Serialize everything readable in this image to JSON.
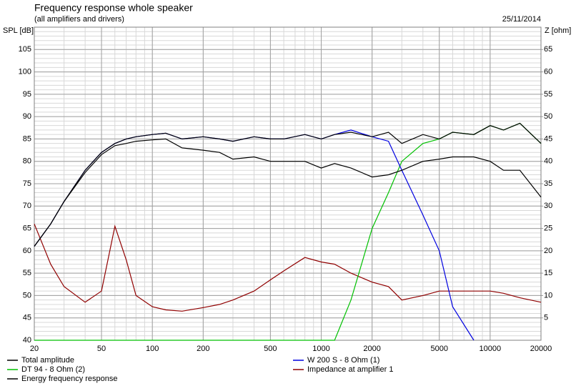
{
  "chart_data": {
    "type": "line",
    "title": "Frequency response whole speaker",
    "subtitle": "(all amplifiers and drivers)",
    "date": "25/11/2014",
    "ylabel": "SPL [dB]",
    "y2label": "Z [ohm]",
    "xscale": "log",
    "minor_grid": true,
    "x": [
      20,
      25,
      30,
      40,
      50,
      60,
      70,
      80,
      100,
      120,
      150,
      200,
      250,
      300,
      400,
      500,
      600,
      800,
      1000,
      1200,
      1500,
      2000,
      2500,
      3000,
      4000,
      5000,
      6000,
      8000,
      10000,
      12000,
      15000,
      20000
    ],
    "xlim": [
      20,
      20000
    ],
    "xticks": [
      20,
      50,
      100,
      200,
      500,
      1000,
      2000,
      5000,
      10000,
      20000
    ],
    "ylim": [
      40,
      110
    ],
    "yticks": [
      40,
      45,
      50,
      55,
      60,
      65,
      70,
      75,
      80,
      85,
      90,
      95,
      100,
      105
    ],
    "y2lim": [
      0,
      70
    ],
    "y2ticks": [
      5,
      10,
      15,
      20,
      25,
      30,
      35,
      40,
      45,
      50,
      55,
      60,
      65
    ],
    "series": [
      {
        "name": "Total amplitude",
        "color": "#000000",
        "values": [
          61,
          66,
          71,
          78,
          82,
          84,
          85,
          85.5,
          86,
          86.3,
          85,
          85.5,
          85,
          84.5,
          85.5,
          85,
          85,
          86,
          85,
          86,
          86.5,
          85.5,
          86.5,
          84,
          86,
          85,
          86.5,
          86,
          88,
          87,
          88.5,
          84
        ]
      },
      {
        "name": "W 200 S - 8 Ohm (1)",
        "color": "#0000e0",
        "values": [
          61,
          66,
          71,
          78,
          82,
          84,
          85,
          85.5,
          86,
          86.3,
          85,
          85.5,
          85,
          84.5,
          85.5,
          85,
          85,
          86,
          85,
          86,
          87,
          85.5,
          84.5,
          78,
          68,
          60,
          47.5,
          40,
          null,
          null,
          null,
          null
        ]
      },
      {
        "name": "DT 94 - 8 Ohm (2)",
        "color": "#00c000",
        "values": [
          40,
          40,
          40,
          40,
          40,
          40,
          40,
          40,
          40,
          40,
          40,
          40,
          40,
          40,
          40,
          40,
          40,
          40,
          40,
          40,
          49,
          65,
          73,
          80,
          84,
          85,
          86.5,
          86,
          88,
          87,
          88.5,
          84
        ]
      },
      {
        "name": "Impedance at amplifier 1",
        "color": "#900000",
        "axis": "y2",
        "values": [
          26,
          17,
          12,
          8.5,
          11,
          25.5,
          18,
          10,
          7.5,
          6.8,
          6.5,
          7.3,
          8,
          9,
          11,
          13.5,
          15.5,
          18.5,
          17.5,
          17,
          15,
          13,
          12,
          9,
          10,
          11,
          11,
          11,
          11,
          10.5,
          9.5,
          8.5
        ]
      },
      {
        "name": "Energy frequency response",
        "color": "#000000",
        "values": [
          61,
          66,
          71,
          77.5,
          81.5,
          83.5,
          84,
          84.5,
          84.8,
          85,
          83,
          82.5,
          82,
          80.5,
          81,
          80,
          80,
          80,
          78.5,
          79.5,
          78.5,
          76.5,
          77,
          78,
          80,
          80.5,
          81,
          81,
          80,
          78,
          78,
          72
        ]
      }
    ]
  }
}
